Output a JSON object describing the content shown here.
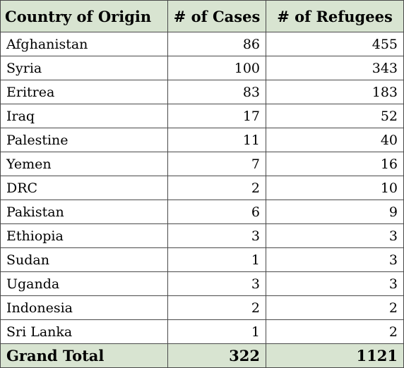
{
  "table": {
    "headers": {
      "country": "Country of Origin",
      "cases": "# of Cases",
      "refugees": "# of Refugees"
    },
    "rows": [
      {
        "country": "Afghanistan",
        "cases": "86",
        "refugees": "455"
      },
      {
        "country": "Syria",
        "cases": "100",
        "refugees": "343"
      },
      {
        "country": "Eritrea",
        "cases": "83",
        "refugees": "183"
      },
      {
        "country": "Iraq",
        "cases": "17",
        "refugees": "52"
      },
      {
        "country": "Palestine",
        "cases": "11",
        "refugees": "40"
      },
      {
        "country": "Yemen",
        "cases": "7",
        "refugees": "16"
      },
      {
        "country": "DRC",
        "cases": "2",
        "refugees": "10"
      },
      {
        "country": "Pakistan",
        "cases": "6",
        "refugees": "9"
      },
      {
        "country": "Ethiopia",
        "cases": "3",
        "refugees": "3"
      },
      {
        "country": "Sudan",
        "cases": "1",
        "refugees": "3"
      },
      {
        "country": "Uganda",
        "cases": "3",
        "refugees": "3"
      },
      {
        "country": "Indonesia",
        "cases": "2",
        "refugees": "2"
      },
      {
        "country": "Sri Lanka",
        "cases": "1",
        "refugees": "2"
      }
    ],
    "total": {
      "label": "Grand Total",
      "cases": "322",
      "refugees": "1121"
    }
  },
  "colors": {
    "header_background": "#d8e4d1",
    "border": "#4a4a4a"
  }
}
